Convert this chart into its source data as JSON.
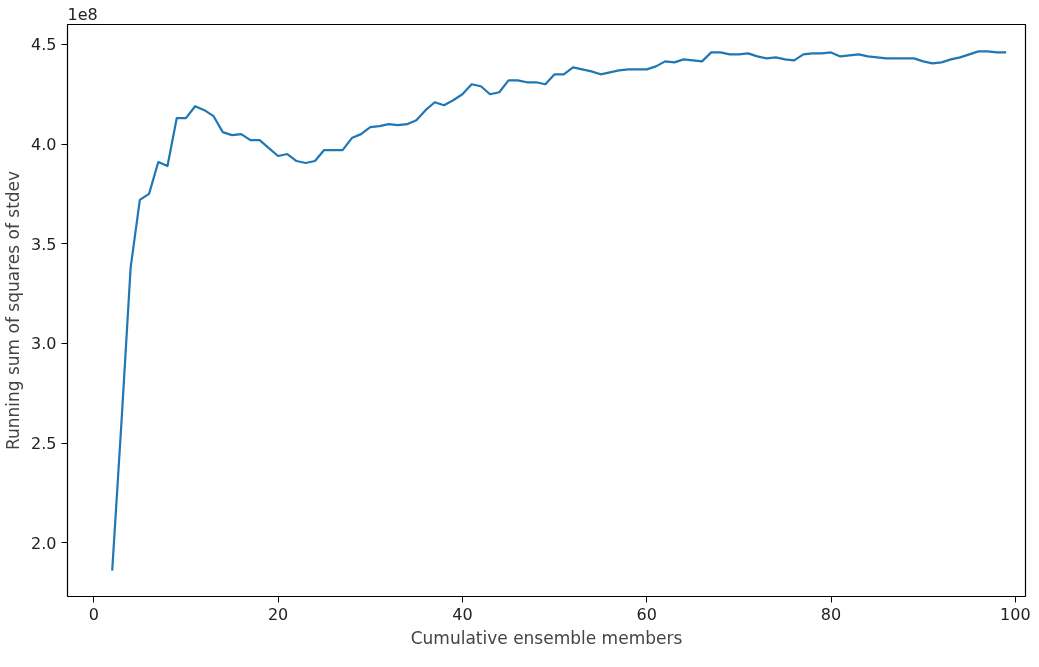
{
  "chart_data": {
    "type": "line",
    "xlabel": "Cumulative ensemble members",
    "ylabel": "Running sum of squares of stdev",
    "annotations": [
      "1e8"
    ],
    "x": [
      2,
      3,
      4,
      5,
      6,
      7,
      8,
      9,
      10,
      11,
      12,
      13,
      14,
      15,
      16,
      17,
      18,
      19,
      20,
      21,
      22,
      23,
      24,
      25,
      26,
      27,
      28,
      29,
      30,
      31,
      32,
      33,
      34,
      35,
      36,
      37,
      38,
      39,
      40,
      41,
      42,
      43,
      44,
      45,
      46,
      47,
      48,
      49,
      50,
      51,
      52,
      53,
      54,
      55,
      56,
      57,
      58,
      59,
      60,
      61,
      62,
      63,
      64,
      65,
      66,
      67,
      68,
      69,
      70,
      71,
      72,
      73,
      74,
      75,
      76,
      77,
      78,
      79,
      80,
      81,
      82,
      83,
      84,
      85,
      86,
      87,
      88,
      89,
      90,
      91,
      92,
      93,
      94,
      95,
      96,
      97,
      98,
      99
    ],
    "series": [
      {
        "color": "#1f77b4",
        "values": [
          1.86,
          2.6,
          3.38,
          3.72,
          3.75,
          3.91,
          3.89,
          4.13,
          4.13,
          4.19,
          4.17,
          4.14,
          4.06,
          4.045,
          4.05,
          4.02,
          4.02,
          3.98,
          3.94,
          3.95,
          3.915,
          3.905,
          3.915,
          3.97,
          3.97,
          3.97,
          4.03,
          4.05,
          4.085,
          4.09,
          4.1,
          4.095,
          4.1,
          4.12,
          4.17,
          4.21,
          4.195,
          4.22,
          4.25,
          4.3,
          4.29,
          4.25,
          4.26,
          4.32,
          4.32,
          4.31,
          4.31,
          4.3,
          4.35,
          4.35,
          4.385,
          4.375,
          4.365,
          4.35,
          4.36,
          4.37,
          4.375,
          4.375,
          4.375,
          4.39,
          4.415,
          4.41,
          4.425,
          4.42,
          4.415,
          4.46,
          4.46,
          4.45,
          4.45,
          4.455,
          4.44,
          4.43,
          4.435,
          4.425,
          4.42,
          4.45,
          4.455,
          4.455,
          4.46,
          4.44,
          4.445,
          4.45,
          4.44,
          4.435,
          4.43,
          4.43,
          4.43,
          4.43,
          4.415,
          4.405,
          4.41,
          4.425,
          4.435,
          4.45,
          4.465,
          4.465,
          4.46,
          4.46
        ]
      }
    ],
    "xlim": [
      -2.85,
      101.1
    ],
    "ylim": [
      1.73,
      4.6
    ],
    "xticks": [
      0,
      20,
      40,
      60,
      80,
      100
    ],
    "yticks": [
      {
        "value": 2.0,
        "label": "2.0"
      },
      {
        "value": 2.5,
        "label": "2.5"
      },
      {
        "value": 3.0,
        "label": "3.0"
      },
      {
        "value": 3.5,
        "label": "3.5"
      },
      {
        "value": 4.0,
        "label": "4.0"
      },
      {
        "value": 4.5,
        "label": "4.5"
      }
    ],
    "grid": false,
    "marker": "none",
    "line_style": "solid"
  }
}
